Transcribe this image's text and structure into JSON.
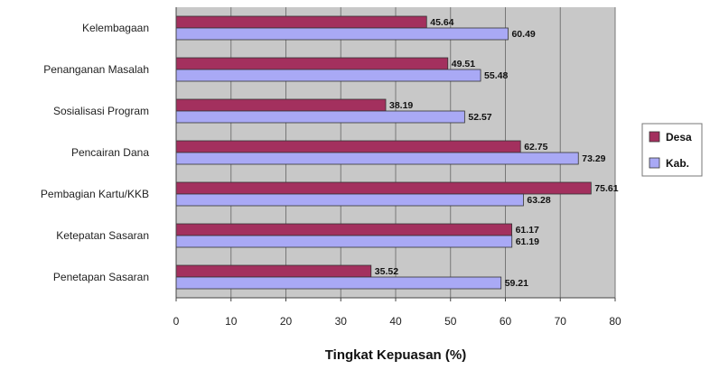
{
  "chart_data": {
    "type": "bar",
    "orientation": "horizontal",
    "categories": [
      "Kelembagaan",
      "Penanganan Masalah",
      "Sosialisasi Program",
      "Pencairan Dana",
      "Pembagian Kartu/KKB",
      "Ketepatan Sasaran",
      "Penetapan Sasaran"
    ],
    "series": [
      {
        "name": "Desa",
        "color": "#a3305e",
        "values": [
          45.64,
          49.51,
          38.19,
          62.75,
          75.61,
          61.17,
          35.52
        ],
        "labels": [
          "45.64",
          "49.51",
          "38.19",
          "62.75",
          "75.61",
          "61.17",
          "35.52"
        ]
      },
      {
        "name": "Kab.",
        "color": "#a9a9f5",
        "values": [
          60.49,
          55.48,
          52.57,
          73.29,
          63.28,
          61.19,
          59.21
        ],
        "labels": [
          "60.49",
          "55.48",
          "52.57",
          "73.29",
          "63.28",
          "61.19",
          "59.21"
        ]
      }
    ],
    "xlabel": "Tingkat Kepuasan (%)",
    "ylabel": "",
    "xlim": [
      0,
      80
    ],
    "xticks": [
      0,
      10,
      20,
      30,
      40,
      50,
      60,
      70,
      80
    ],
    "grid": true,
    "legend": "right",
    "plot_background": "#c8c8c8"
  }
}
